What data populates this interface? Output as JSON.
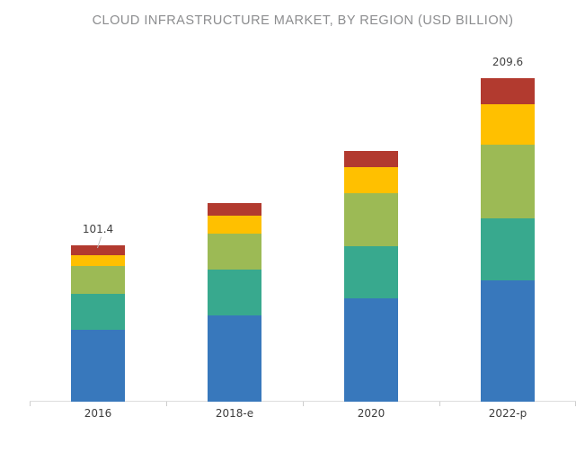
{
  "chart_data": {
    "type": "bar",
    "variant": "stacked-column",
    "title": "CLOUD INFRASTRUCTURE MARKET, BY REGION (USD BILLION)",
    "categories": [
      "2016",
      "2018-e",
      "2020",
      "2022-p"
    ],
    "series": [
      {
        "name": "series-1-blue",
        "color": "#3878BC",
        "values": [
          46.6,
          55.8,
          66.8,
          78.6
        ]
      },
      {
        "name": "series-2-teal",
        "color": "#38A98E",
        "values": [
          23.4,
          30.1,
          34.0,
          40.2
        ]
      },
      {
        "name": "series-3-green",
        "color": "#9CBA55",
        "values": [
          17.7,
          23.3,
          34.3,
          47.7
        ]
      },
      {
        "name": "series-4-yellow",
        "color": "#FFC000",
        "values": [
          7.0,
          11.1,
          16.8,
          26.2
        ]
      },
      {
        "name": "series-5-red",
        "color": "#B23A2F",
        "values": [
          6.7,
          8.2,
          10.8,
          16.9
        ]
      }
    ],
    "stack_order": "bottom-to-top",
    "totals": [
      101.4,
      128.5,
      162.7,
      209.6
    ],
    "value_labels": [
      {
        "category_index": 0,
        "text": "101.4",
        "leader_line": true
      },
      {
        "category_index": 3,
        "text": "209.6",
        "leader_line": false
      }
    ],
    "legend": "none",
    "grid": false,
    "y_axis_visible": false,
    "ylim": [
      0,
      230
    ],
    "colors": {
      "title_text": "#8C8D8F",
      "axis_line": "#DCDCDC",
      "tick": "#CDCDCD",
      "category_label": "#3D3D3D",
      "value_label": "#424242",
      "leader_line": "#BFBFBF"
    }
  }
}
